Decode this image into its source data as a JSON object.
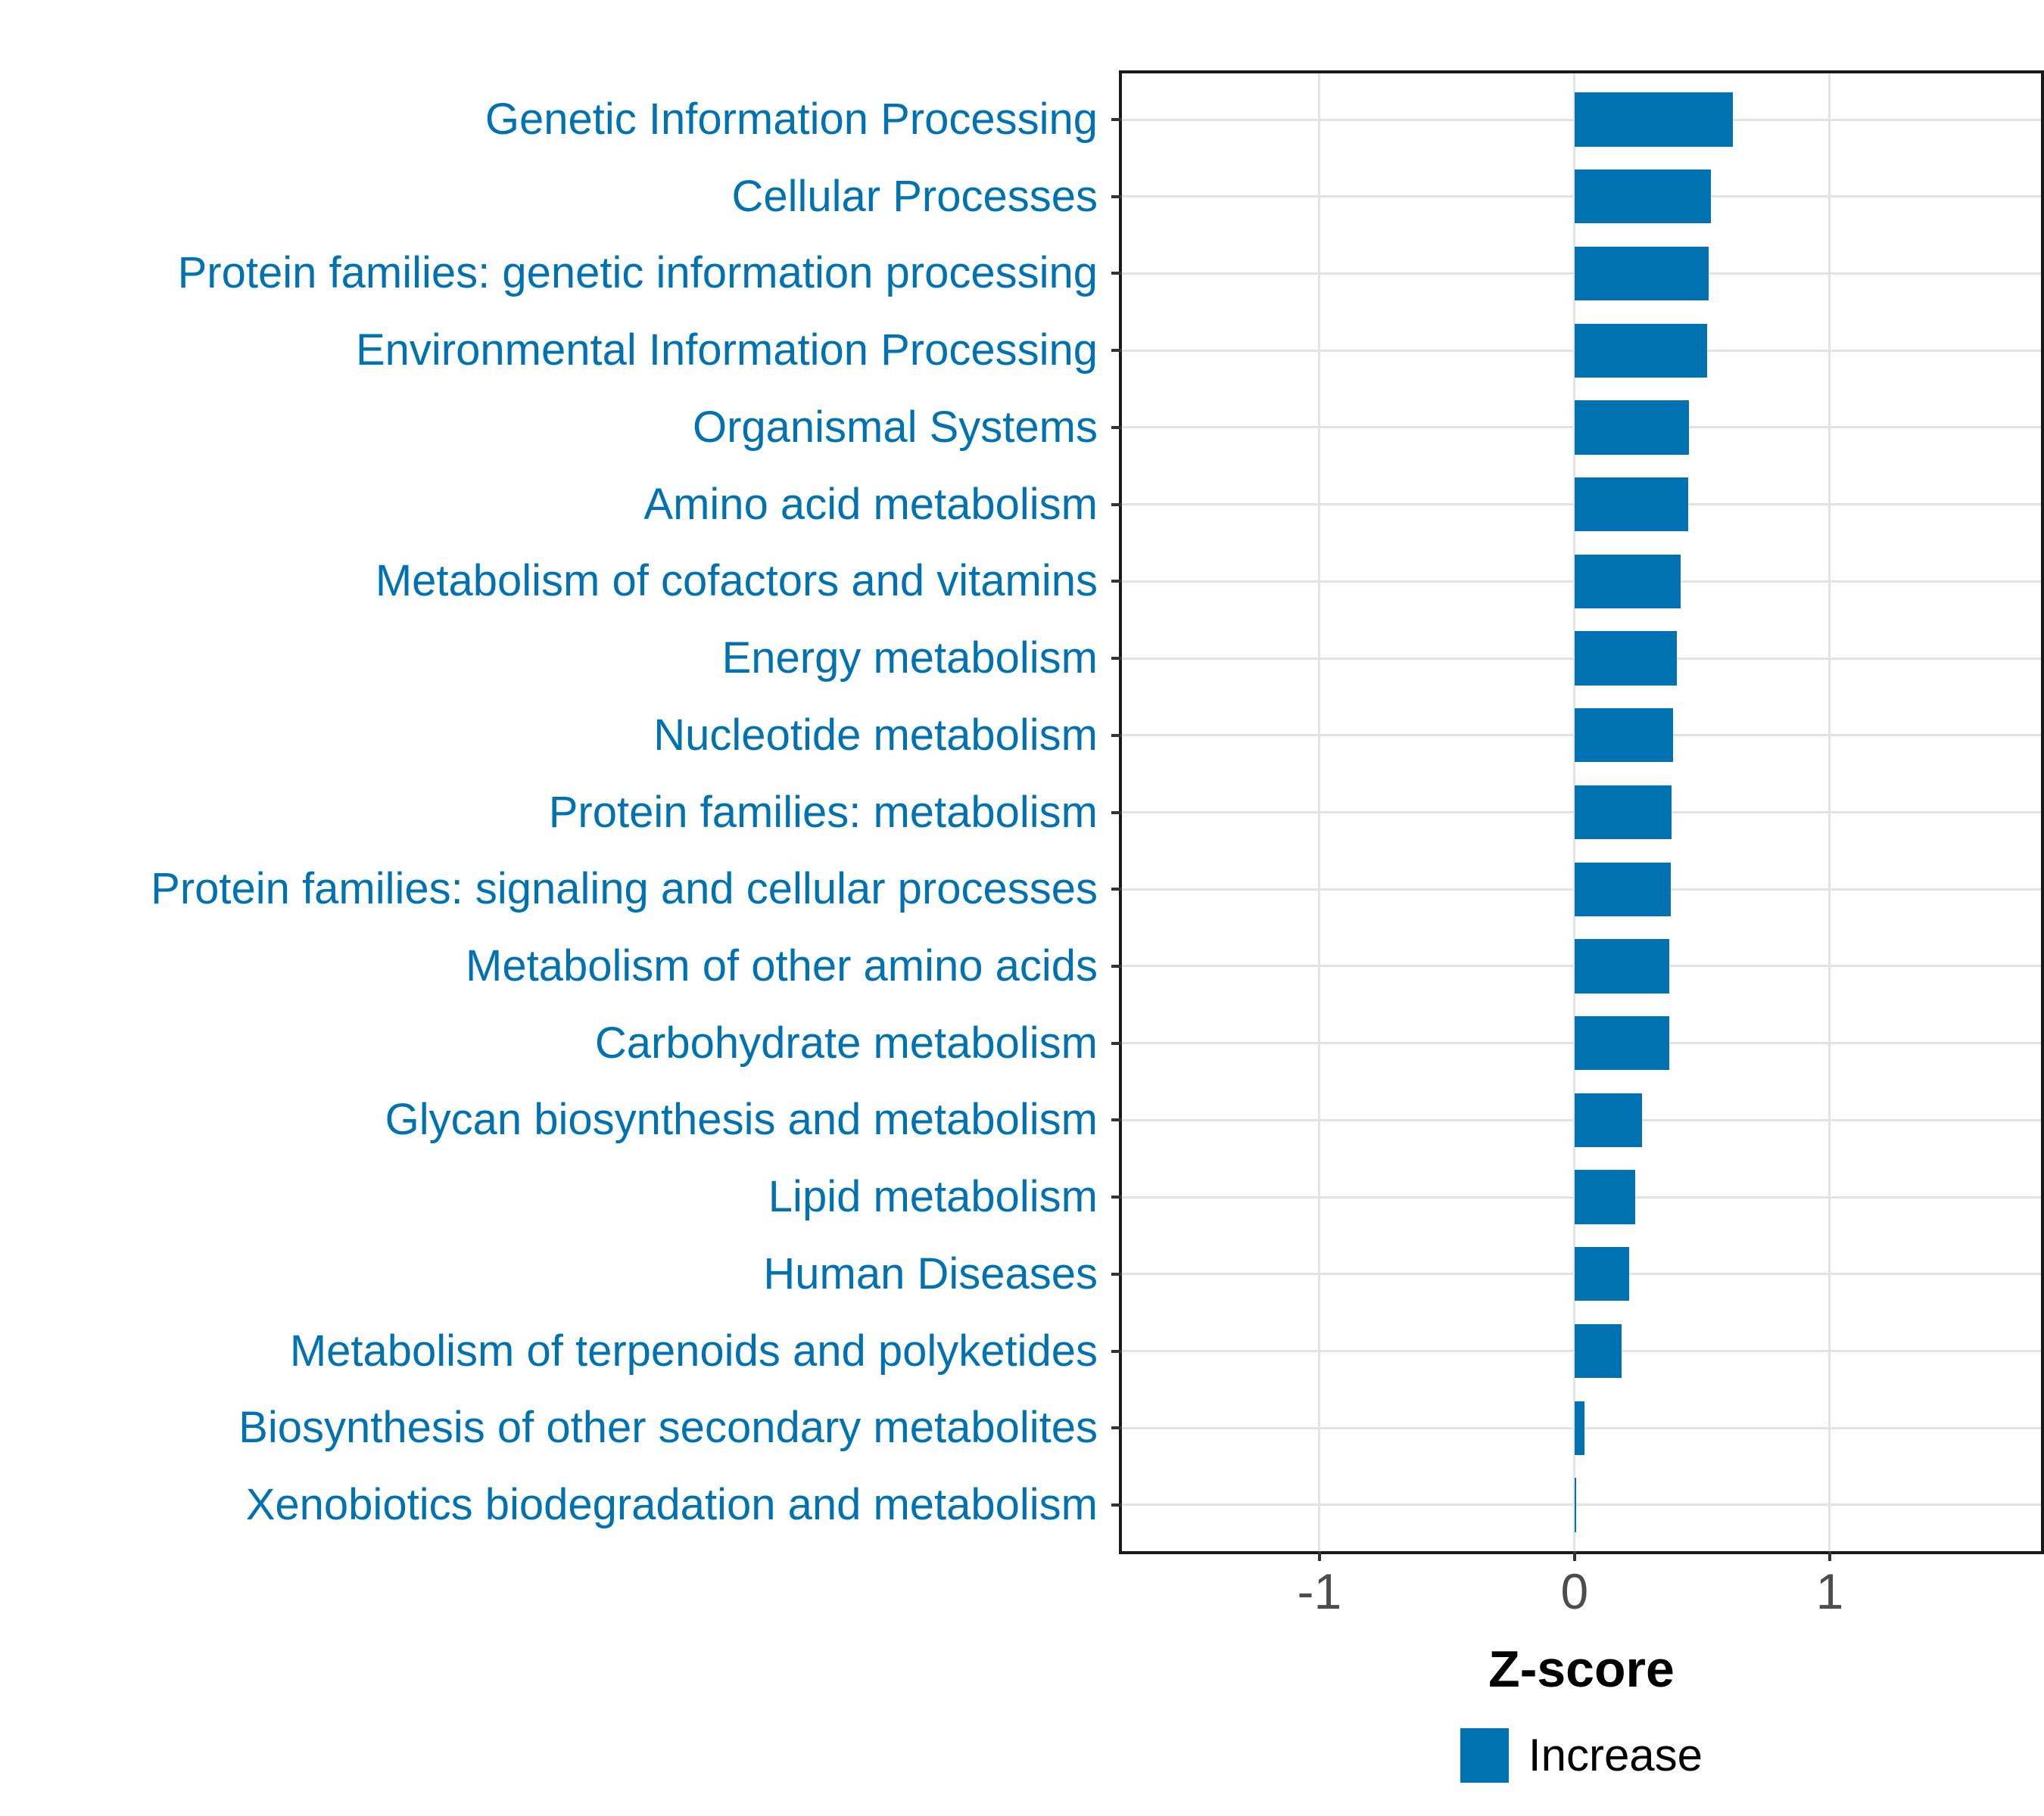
{
  "chart_data": {
    "type": "bar",
    "orientation": "horizontal",
    "title": "",
    "xlabel": "Z-score",
    "ylabel": "",
    "categories": [
      "Genetic Information Processing",
      "Cellular Processes",
      "Protein families: genetic information processing",
      "Environmental Information Processing",
      "Organismal Systems",
      "Amino acid metabolism",
      "Metabolism of cofactors and vitamins",
      "Energy metabolism",
      "Nucleotide metabolism",
      "Protein families: metabolism",
      "Protein families: signaling and cellular processes",
      "Metabolism of other amino acids",
      "Carbohydrate metabolism",
      "Glycan biosynthesis and metabolism",
      "Lipid metabolism",
      "Human Diseases",
      "Metabolism of terpenoids and polyketides",
      "Biosynthesis of other secondary metabolites",
      "Xenobiotics biodegradation and metabolism"
    ],
    "values": [
      0.62,
      0.535,
      0.525,
      0.52,
      0.447,
      0.445,
      0.415,
      0.4,
      0.385,
      0.38,
      0.376,
      0.372,
      0.37,
      0.265,
      0.237,
      0.215,
      0.185,
      0.038,
      0.006
    ],
    "series": [
      {
        "name": "Increase",
        "values": [
          0.62,
          0.535,
          0.525,
          0.52,
          0.447,
          0.445,
          0.415,
          0.4,
          0.385,
          0.38,
          0.376,
          0.372,
          0.37,
          0.265,
          0.237,
          0.215,
          0.185,
          0.038,
          0.006
        ]
      }
    ],
    "xlim": [
      -1.774,
      1.828
    ],
    "x_ticks": [
      -1,
      0,
      1
    ],
    "x_tick_labels": [
      "-1",
      "0",
      "1"
    ],
    "grid": "major",
    "legend_position": "bottom",
    "legend_label": "Increase",
    "bar_color": "#0072B2",
    "category_label_color": "#0072B2",
    "tick_label_color": "#4d4d4d",
    "gridline_color": "#e3e3e3",
    "panel_border_color": "#1a1a1a"
  }
}
